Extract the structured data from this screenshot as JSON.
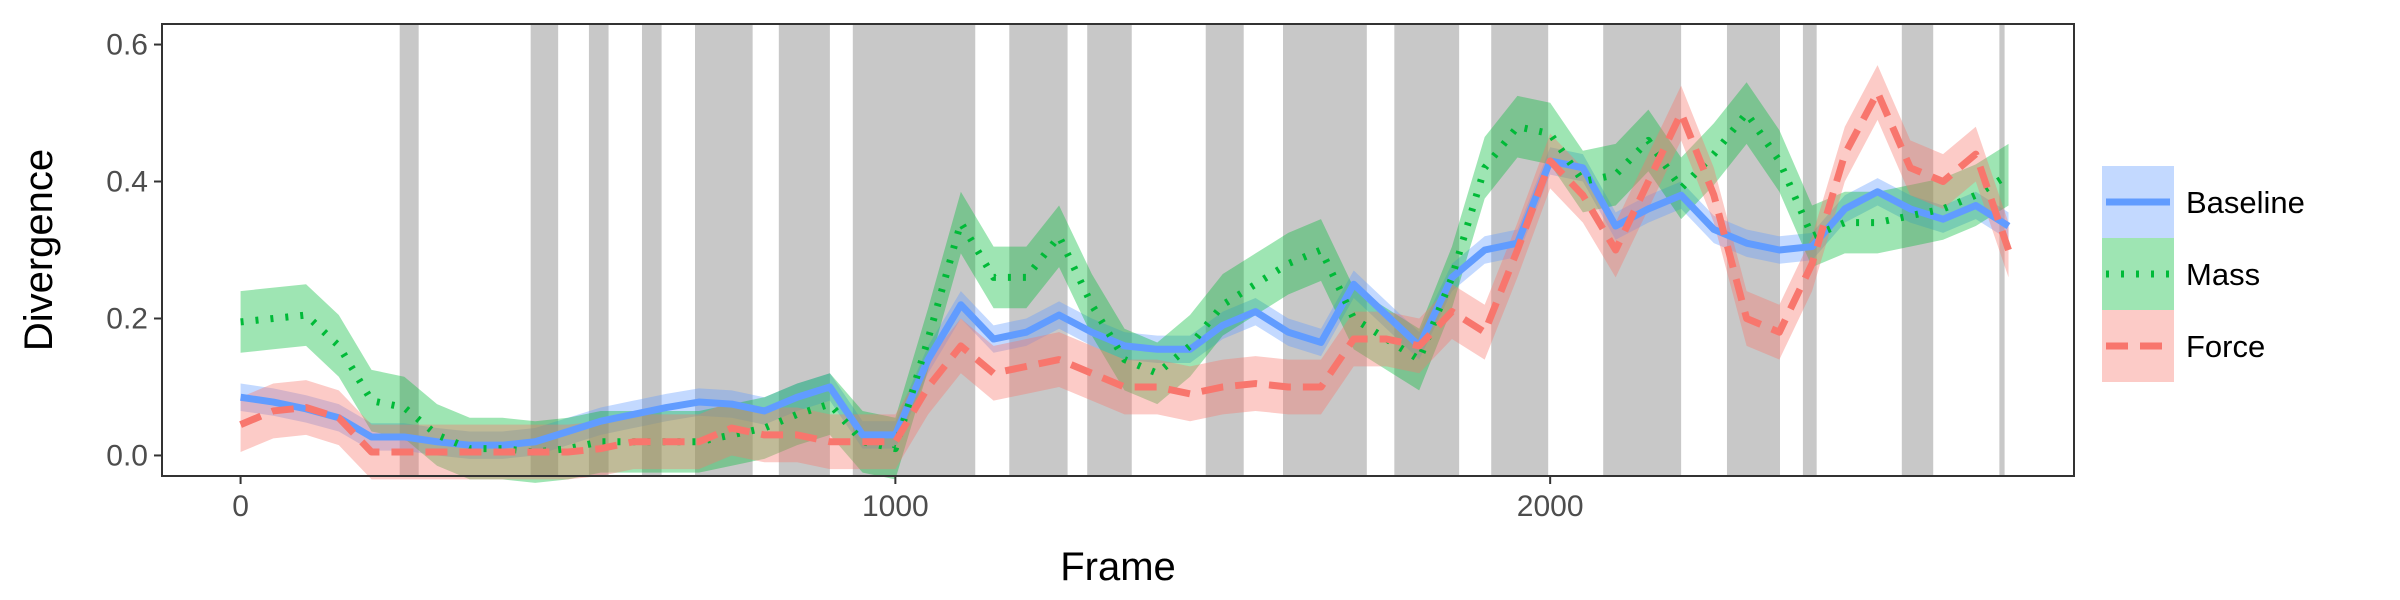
{
  "chart_data": {
    "type": "line",
    "xlabel": "Frame",
    "ylabel": "Divergence",
    "xlim": [
      -120,
      2800
    ],
    "ylim": [
      -0.03,
      0.63
    ],
    "x_ticks": [
      0,
      1000,
      2000
    ],
    "x_tick_labels": [
      "0",
      "1000",
      "2000"
    ],
    "y_ticks": [
      0.0,
      0.2,
      0.4,
      0.6
    ],
    "y_tick_labels": [
      "0.0",
      "0.2",
      "0.4",
      "0.6"
    ],
    "grid": false,
    "legend_position": "right",
    "shaded_frame_intervals": [
      [
        243,
        272
      ],
      [
        443,
        485
      ],
      [
        532,
        562
      ],
      [
        613,
        643
      ],
      [
        694,
        782
      ],
      [
        822,
        900
      ],
      [
        935,
        1122
      ],
      [
        1174,
        1263
      ],
      [
        1293,
        1361
      ],
      [
        1474,
        1532
      ],
      [
        1592,
        1720
      ],
      [
        1762,
        1861
      ],
      [
        1910,
        1997
      ],
      [
        2081,
        2200
      ],
      [
        2270,
        2351
      ],
      [
        2386,
        2407
      ],
      [
        2537,
        2585
      ],
      [
        2686,
        2694
      ]
    ],
    "x": [
      0,
      50,
      100,
      150,
      200,
      250,
      300,
      350,
      400,
      450,
      500,
      550,
      600,
      650,
      700,
      750,
      800,
      850,
      900,
      950,
      1000,
      1050,
      1100,
      1150,
      1200,
      1250,
      1300,
      1350,
      1400,
      1450,
      1500,
      1550,
      1600,
      1650,
      1700,
      1750,
      1800,
      1850,
      1900,
      1950,
      2000,
      2050,
      2100,
      2150,
      2200,
      2250,
      2300,
      2350,
      2400,
      2450,
      2500,
      2550,
      2600,
      2650,
      2700
    ],
    "series": [
      {
        "name": "Baseline",
        "color": "#619CFF",
        "line_style": "solid",
        "values": [
          0.085,
          0.078,
          0.068,
          0.055,
          0.027,
          0.027,
          0.02,
          0.015,
          0.015,
          0.02,
          0.035,
          0.05,
          0.06,
          0.07,
          0.078,
          0.075,
          0.065,
          0.085,
          0.1,
          0.03,
          0.03,
          0.14,
          0.22,
          0.17,
          0.18,
          0.205,
          0.18,
          0.16,
          0.155,
          0.155,
          0.19,
          0.21,
          0.18,
          0.165,
          0.25,
          0.205,
          0.16,
          0.26,
          0.3,
          0.31,
          0.43,
          0.42,
          0.335,
          0.36,
          0.38,
          0.33,
          0.31,
          0.3,
          0.305,
          0.36,
          0.385,
          0.36,
          0.345,
          0.365,
          0.335
        ],
        "lower": [
          0.065,
          0.058,
          0.048,
          0.035,
          0.007,
          0.007,
          0.0,
          -0.005,
          -0.005,
          0.0,
          0.015,
          0.03,
          0.04,
          0.05,
          0.058,
          0.055,
          0.045,
          0.065,
          0.08,
          0.01,
          0.01,
          0.12,
          0.2,
          0.15,
          0.16,
          0.185,
          0.16,
          0.14,
          0.135,
          0.135,
          0.17,
          0.19,
          0.16,
          0.145,
          0.23,
          0.185,
          0.14,
          0.24,
          0.28,
          0.29,
          0.41,
          0.4,
          0.315,
          0.34,
          0.36,
          0.31,
          0.29,
          0.28,
          0.285,
          0.34,
          0.365,
          0.34,
          0.325,
          0.345,
          0.315
        ],
        "upper": [
          0.105,
          0.098,
          0.088,
          0.075,
          0.047,
          0.047,
          0.04,
          0.035,
          0.035,
          0.04,
          0.055,
          0.07,
          0.08,
          0.09,
          0.098,
          0.095,
          0.085,
          0.105,
          0.12,
          0.05,
          0.05,
          0.16,
          0.24,
          0.19,
          0.2,
          0.225,
          0.2,
          0.18,
          0.175,
          0.175,
          0.21,
          0.23,
          0.2,
          0.185,
          0.27,
          0.225,
          0.18,
          0.28,
          0.32,
          0.33,
          0.45,
          0.44,
          0.355,
          0.38,
          0.4,
          0.35,
          0.33,
          0.32,
          0.325,
          0.38,
          0.405,
          0.38,
          0.365,
          0.385,
          0.355
        ]
      },
      {
        "name": "Mass",
        "color": "#00BA38",
        "line_style": "dotted",
        "values": [
          0.195,
          0.2,
          0.205,
          0.16,
          0.08,
          0.07,
          0.03,
          0.01,
          0.01,
          0.005,
          0.01,
          0.02,
          0.02,
          0.02,
          0.02,
          0.03,
          0.04,
          0.06,
          0.075,
          0.02,
          0.01,
          0.17,
          0.34,
          0.26,
          0.26,
          0.32,
          0.22,
          0.14,
          0.12,
          0.16,
          0.22,
          0.25,
          0.28,
          0.3,
          0.2,
          0.17,
          0.14,
          0.26,
          0.42,
          0.48,
          0.47,
          0.4,
          0.41,
          0.46,
          0.39,
          0.44,
          0.5,
          0.43,
          0.32,
          0.34,
          0.34,
          0.35,
          0.36,
          0.38,
          0.41
        ],
        "lower": [
          0.15,
          0.155,
          0.16,
          0.115,
          0.035,
          0.025,
          -0.015,
          -0.035,
          -0.035,
          -0.04,
          -0.035,
          -0.025,
          -0.025,
          -0.025,
          -0.025,
          -0.015,
          -0.005,
          0.015,
          0.03,
          -0.025,
          -0.035,
          0.125,
          0.295,
          0.215,
          0.215,
          0.275,
          0.175,
          0.095,
          0.075,
          0.115,
          0.175,
          0.205,
          0.235,
          0.255,
          0.155,
          0.125,
          0.095,
          0.215,
          0.375,
          0.435,
          0.425,
          0.355,
          0.365,
          0.415,
          0.345,
          0.395,
          0.455,
          0.385,
          0.275,
          0.295,
          0.295,
          0.305,
          0.315,
          0.335,
          0.365
        ],
        "upper": [
          0.24,
          0.245,
          0.25,
          0.205,
          0.125,
          0.115,
          0.075,
          0.055,
          0.055,
          0.05,
          0.055,
          0.065,
          0.065,
          0.065,
          0.065,
          0.075,
          0.085,
          0.105,
          0.12,
          0.065,
          0.055,
          0.215,
          0.385,
          0.305,
          0.305,
          0.365,
          0.265,
          0.185,
          0.165,
          0.205,
          0.265,
          0.295,
          0.325,
          0.345,
          0.245,
          0.215,
          0.185,
          0.305,
          0.465,
          0.525,
          0.515,
          0.445,
          0.455,
          0.505,
          0.435,
          0.485,
          0.545,
          0.475,
          0.365,
          0.385,
          0.385,
          0.395,
          0.405,
          0.425,
          0.455
        ]
      },
      {
        "name": "Force",
        "color": "#F8766D",
        "line_style": "dashed",
        "values": [
          0.045,
          0.065,
          0.07,
          0.055,
          0.005,
          0.005,
          0.005,
          0.005,
          0.005,
          0.005,
          0.005,
          0.01,
          0.02,
          0.02,
          0.02,
          0.04,
          0.03,
          0.03,
          0.02,
          0.02,
          0.02,
          0.1,
          0.16,
          0.12,
          0.13,
          0.14,
          0.12,
          0.1,
          0.1,
          0.09,
          0.1,
          0.105,
          0.1,
          0.1,
          0.17,
          0.17,
          0.16,
          0.21,
          0.18,
          0.3,
          0.43,
          0.38,
          0.3,
          0.4,
          0.5,
          0.38,
          0.2,
          0.18,
          0.28,
          0.44,
          0.53,
          0.42,
          0.4,
          0.44,
          0.3
        ],
        "lower": [
          0.005,
          0.025,
          0.03,
          0.015,
          -0.035,
          -0.035,
          -0.035,
          -0.035,
          -0.035,
          -0.035,
          -0.035,
          -0.03,
          -0.02,
          -0.02,
          -0.02,
          0.0,
          -0.01,
          -0.01,
          -0.02,
          -0.02,
          -0.02,
          0.06,
          0.12,
          0.08,
          0.09,
          0.1,
          0.08,
          0.06,
          0.06,
          0.05,
          0.06,
          0.065,
          0.06,
          0.06,
          0.13,
          0.13,
          0.12,
          0.17,
          0.14,
          0.26,
          0.39,
          0.34,
          0.26,
          0.36,
          0.46,
          0.34,
          0.16,
          0.14,
          0.24,
          0.4,
          0.49,
          0.38,
          0.36,
          0.4,
          0.26
        ],
        "upper": [
          0.085,
          0.105,
          0.11,
          0.095,
          0.045,
          0.045,
          0.045,
          0.045,
          0.045,
          0.045,
          0.045,
          0.05,
          0.06,
          0.06,
          0.06,
          0.08,
          0.07,
          0.07,
          0.06,
          0.06,
          0.06,
          0.14,
          0.2,
          0.16,
          0.17,
          0.18,
          0.16,
          0.14,
          0.14,
          0.13,
          0.14,
          0.145,
          0.14,
          0.14,
          0.21,
          0.21,
          0.2,
          0.25,
          0.22,
          0.34,
          0.47,
          0.42,
          0.34,
          0.44,
          0.54,
          0.42,
          0.24,
          0.22,
          0.32,
          0.48,
          0.57,
          0.46,
          0.44,
          0.48,
          0.34
        ]
      }
    ]
  },
  "legend": {
    "entries": [
      {
        "label": "Baseline",
        "color": "#619CFF",
        "line_style": "solid"
      },
      {
        "label": "Mass",
        "color": "#00BA38",
        "line_style": "dotted"
      },
      {
        "label": "Force",
        "color": "#F8766D",
        "line_style": "dashed"
      }
    ]
  }
}
